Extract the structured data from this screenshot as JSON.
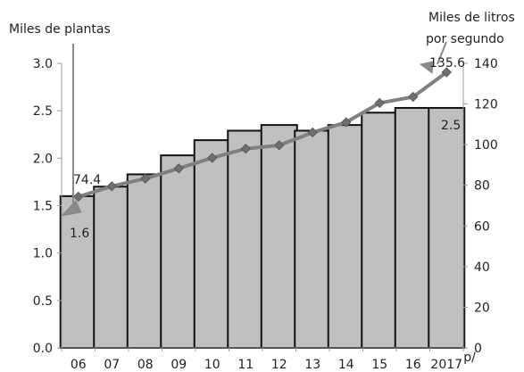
{
  "chart_data": {
    "type": "bar",
    "categories": [
      "06",
      "07",
      "08",
      "09",
      "10",
      "11",
      "12",
      "13",
      "14",
      "15",
      "16",
      "2017"
    ],
    "category_suffix": {
      "2017": "p/"
    },
    "series": [
      {
        "name": "",
        "type": "bar",
        "axis": "left",
        "values": [
          1.6,
          1.7,
          1.83,
          2.03,
          2.19,
          2.29,
          2.35,
          2.29,
          2.35,
          2.48,
          2.53,
          2.53
        ]
      },
      {
        "name": "",
        "type": "line",
        "axis": "right",
        "values": [
          74.4,
          79.5,
          83.3,
          88.3,
          93.5,
          98.0,
          99.7,
          106.0,
          111.0,
          120.5,
          123.5,
          135.6
        ]
      }
    ],
    "title": "",
    "xlabel": "",
    "ylabel": "Miles de plantas",
    "y2label": [
      "Miles de litros",
      "por segundo"
    ],
    "ylim": [
      0,
      3.0
    ],
    "y2lim": [
      0,
      140
    ],
    "yticks": [
      "0.0",
      "0.5",
      "1.0",
      "1.5",
      "2.0",
      "2.5",
      "3.0"
    ],
    "y2ticks": [
      "0",
      "20",
      "40",
      "60",
      "80",
      "100",
      "120",
      "140"
    ],
    "grid": false,
    "legend": "none",
    "data_labels": {
      "first_line": "74.4",
      "first_bar": "1.6",
      "last_line": "135.6",
      "last_bar": "2.5"
    },
    "colors": {
      "bar_fill": "#c0c0c0",
      "bar_stroke": "#111111",
      "line": "#808080",
      "marker": "#6f6f6f",
      "callout": "#8a8a8a"
    }
  }
}
